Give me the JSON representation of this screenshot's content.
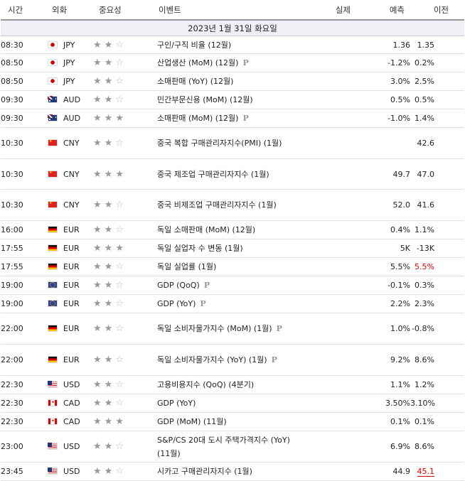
{
  "header": {
    "time": "시간",
    "currency": "외화",
    "importance": "중요성",
    "event": "이벤트",
    "actual": "실제",
    "forecast": "예측",
    "previous": "이전"
  },
  "date_label": "2023년 1월 31일 화요일",
  "colors": {
    "accent_red": "#dd0000",
    "date_row_bg": "#eef0f6"
  },
  "rows": [
    {
      "time": "08:30",
      "flag": "jp",
      "currency": "JPY",
      "stars": 2,
      "event": "구인/구직 비율 (12월)",
      "preliminary": false,
      "actual": "",
      "forecast": "1.36",
      "previous": "1.35",
      "prev_red": false
    },
    {
      "time": "08:50",
      "flag": "jp",
      "currency": "JPY",
      "stars": 2,
      "event": "산업생산 (MoM) (12월)",
      "preliminary": true,
      "actual": "",
      "forecast": "-1.2%",
      "previous": "0.2%",
      "prev_red": false
    },
    {
      "time": "08:50",
      "flag": "jp",
      "currency": "JPY",
      "stars": 2,
      "event": "소매판매 (YoY) (12월)",
      "preliminary": false,
      "actual": "",
      "forecast": "3.0%",
      "previous": "2.5%",
      "prev_red": false
    },
    {
      "time": "09:30",
      "flag": "au",
      "currency": "AUD",
      "stars": 2,
      "event": "민간부문신용 (MoM) (12월)",
      "preliminary": false,
      "actual": "",
      "forecast": "0.5%",
      "previous": "0.5%",
      "prev_red": false
    },
    {
      "time": "09:30",
      "flag": "au",
      "currency": "AUD",
      "stars": 3,
      "event": "소매판매 (MoM) (12월)",
      "preliminary": true,
      "actual": "",
      "forecast": "-1.0%",
      "previous": "1.4%",
      "prev_red": false
    },
    {
      "time": "10:30",
      "flag": "cn",
      "currency": "CNY",
      "stars": 2,
      "event": "중국 복합 구매관리자지수(PMI) (1월)",
      "preliminary": false,
      "actual": "",
      "forecast": "",
      "previous": "42.6",
      "prev_red": false
    },
    {
      "time": "10:30",
      "flag": "cn",
      "currency": "CNY",
      "stars": 3,
      "event": "중국 제조업 구매관리자지수 (1월)",
      "preliminary": false,
      "actual": "",
      "forecast": "49.7",
      "previous": "47.0",
      "prev_red": false
    },
    {
      "time": "10:30",
      "flag": "cn",
      "currency": "CNY",
      "stars": 2,
      "event": "중국 비제조업 구매관리자지수 (1월)",
      "preliminary": false,
      "actual": "",
      "forecast": "52.0",
      "previous": "41.6",
      "prev_red": false
    },
    {
      "time": "16:00",
      "flag": "de",
      "currency": "EUR",
      "stars": 2,
      "event": "독일 소매판매 (MoM) (12월)",
      "preliminary": false,
      "actual": "",
      "forecast": "0.4%",
      "previous": "1.1%",
      "prev_red": false
    },
    {
      "time": "17:55",
      "flag": "de",
      "currency": "EUR",
      "stars": 3,
      "event": "독일 실업자 수 변동 (1월)",
      "preliminary": false,
      "actual": "",
      "forecast": "5K",
      "previous": "-13K",
      "prev_red": false
    },
    {
      "time": "17:55",
      "flag": "de",
      "currency": "EUR",
      "stars": 2,
      "event": "독일 실업률 (1월)",
      "preliminary": false,
      "actual": "",
      "forecast": "5.5%",
      "previous": "5.5%",
      "prev_red": true
    },
    {
      "time": "19:00",
      "flag": "eu",
      "currency": "EUR",
      "stars": 2,
      "event": "GDP (QoQ)",
      "preliminary": true,
      "actual": "",
      "forecast": "-0.1%",
      "previous": "0.3%",
      "prev_red": false
    },
    {
      "time": "19:00",
      "flag": "eu",
      "currency": "EUR",
      "stars": 2,
      "event": "GDP (YoY)",
      "preliminary": true,
      "actual": "",
      "forecast": "2.2%",
      "previous": "2.3%",
      "prev_red": false
    },
    {
      "time": "22:00",
      "flag": "de",
      "currency": "EUR",
      "stars": 2,
      "event": "독일 소비자물가지수 (MoM) (1월)",
      "preliminary": true,
      "actual": "",
      "forecast": "1.0%",
      "previous": "-0.8%",
      "prev_red": false
    },
    {
      "time": "22:00",
      "flag": "de",
      "currency": "EUR",
      "stars": 2,
      "event": "독일 소비자물가지수 (YoY) (1월)",
      "preliminary": true,
      "actual": "",
      "forecast": "9.2%",
      "previous": "8.6%",
      "prev_red": false
    },
    {
      "time": "22:30",
      "flag": "us",
      "currency": "USD",
      "stars": 2,
      "event": "고용비용지수 (QoQ) (4분기)",
      "preliminary": false,
      "actual": "",
      "forecast": "1.1%",
      "previous": "1.2%",
      "prev_red": false
    },
    {
      "time": "22:30",
      "flag": "ca",
      "currency": "CAD",
      "stars": 2,
      "event": "GDP (YoY)",
      "preliminary": false,
      "actual": "",
      "forecast": "3.50%",
      "previous": "3.10%",
      "prev_red": false
    },
    {
      "time": "22:30",
      "flag": "ca",
      "currency": "CAD",
      "stars": 3,
      "event": "GDP (MoM) (11월)",
      "preliminary": false,
      "actual": "",
      "forecast": "0.1%",
      "previous": "0.1%",
      "prev_red": false
    },
    {
      "time": "23:00",
      "flag": "us",
      "currency": "USD",
      "stars": 2,
      "event": "S&P/CS 20대 도시 주택가격지수 (YoY) (11월)",
      "preliminary": false,
      "actual": "",
      "forecast": "6.9%",
      "previous": "8.6%",
      "prev_red": false
    },
    {
      "time": "23:45",
      "flag": "us",
      "currency": "USD",
      "stars": 2,
      "event": "시카고 구매관리자지수 (1월)",
      "preliminary": false,
      "actual": "",
      "forecast": "44.9",
      "previous": "45.1",
      "prev_red": true,
      "prev_underline": true
    }
  ]
}
